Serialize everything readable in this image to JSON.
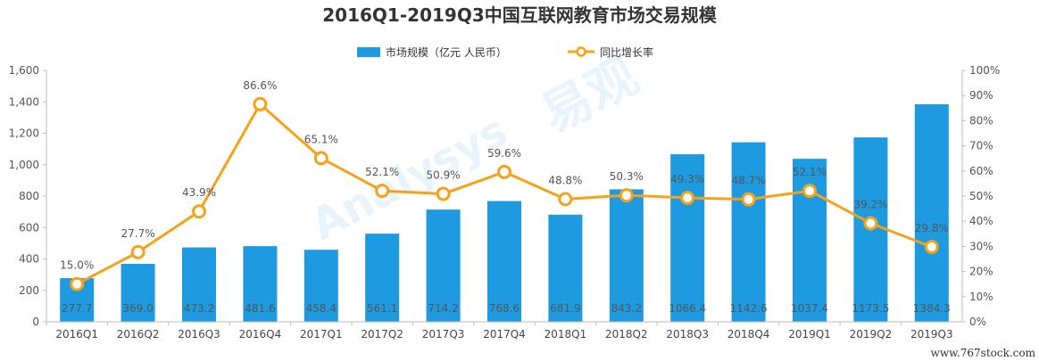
{
  "chart_data": {
    "type": "bar",
    "title": "2016Q1-2019Q3中国互联网教育市场交易规模",
    "categories": [
      "2016Q1",
      "2016Q2",
      "2016Q3",
      "2016Q4",
      "2017Q1",
      "2017Q2",
      "2017Q3",
      "2017Q4",
      "2018Q1",
      "2018Q2",
      "2018Q3",
      "2018Q4",
      "2019Q1",
      "2019Q2",
      "2019Q3"
    ],
    "series": [
      {
        "name": "市场规模（亿元 人民币）",
        "type": "bar",
        "axis": "left",
        "color": "#1e9be0",
        "values": [
          277.7,
          369.0,
          473.2,
          481.6,
          458.4,
          561.1,
          714.2,
          768.6,
          681.9,
          843.2,
          1066.4,
          1142.6,
          1037.4,
          1173.5,
          1384.3
        ],
        "labels": [
          "277.7",
          "369.0",
          "473.2",
          "481.6",
          "458.4",
          "561.1",
          "714.2",
          "768.6",
          "681.9",
          "843.2",
          "1066.4",
          "1142.6",
          "1037.4",
          "1173.5",
          "1384.3"
        ]
      },
      {
        "name": "同比增长率",
        "type": "line",
        "axis": "right",
        "color": "#f5a219",
        "values": [
          15.0,
          27.7,
          43.9,
          86.6,
          65.1,
          52.1,
          50.9,
          59.6,
          48.8,
          50.3,
          49.3,
          48.7,
          52.1,
          39.2,
          29.8
        ],
        "labels": [
          "15.0%",
          "27.7%",
          "43.9%",
          "86.6%",
          "65.1%",
          "52.1%",
          "50.9%",
          "59.6%",
          "48.8%",
          "50.3%",
          "49.3%",
          "48.7%",
          "52.1%",
          "39.2%",
          "29.8%"
        ]
      }
    ],
    "left_axis": {
      "ylim": [
        0,
        1600
      ],
      "ticks": [
        0,
        200,
        400,
        600,
        800,
        1000,
        1200,
        1400,
        1600
      ],
      "tick_labels": [
        "0",
        "200",
        "400",
        "600",
        "800",
        "1,000",
        "1,200",
        "1,400",
        "1,600"
      ]
    },
    "right_axis": {
      "ylim": [
        0,
        100
      ],
      "ticks": [
        0,
        10,
        20,
        30,
        40,
        50,
        60,
        70,
        80,
        90,
        100
      ],
      "tick_labels": [
        "0%",
        "10%",
        "20%",
        "30%",
        "40%",
        "50%",
        "60%",
        "70%",
        "80%",
        "90%",
        "100%"
      ]
    },
    "grid": false,
    "legend": "top"
  },
  "watermark": {
    "text": "www.767stock.com",
    "logo_text": "易观",
    "logo_text_en": "Analysys"
  }
}
